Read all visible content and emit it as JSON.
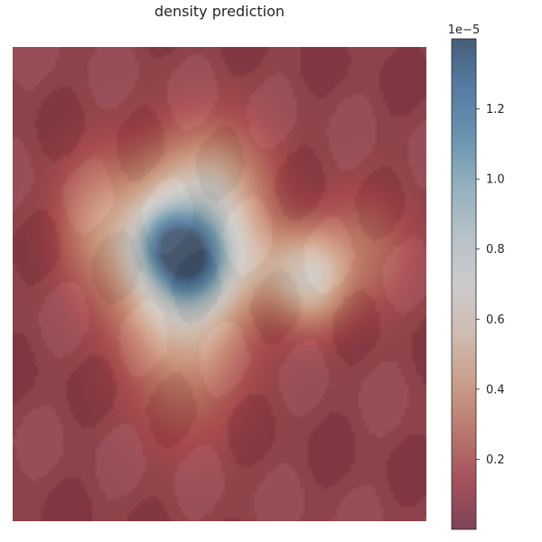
{
  "chart_data": {
    "type": "heatmap",
    "title": "density prediction",
    "xlabel": "",
    "ylabel": "",
    "axes_visible": false,
    "grid": false,
    "colormap": "RdBu",
    "overlay_opacity": 0.55,
    "background": "faint painting of a room with figures, visible through the heatmap",
    "colorbar": {
      "position": "right",
      "offset_text": "1e−5",
      "range": [
        0.0,
        1.4
      ],
      "ticks": [
        0.2,
        0.4,
        0.6,
        0.8,
        1.0,
        1.2
      ],
      "tick_labels": [
        "0.2",
        "0.4",
        "0.6",
        "0.8",
        "1.0",
        "1.2"
      ]
    },
    "field": {
      "note": "density in units of 1e-5; x and y are normalized image coordinates",
      "baseline": 0.06,
      "components": [
        {
          "x": 0.4,
          "y": 0.42,
          "sx": 0.11,
          "sy": 0.12,
          "amp": 0.62
        },
        {
          "x": 0.43,
          "y": 0.45,
          "sx": 0.06,
          "sy": 0.06,
          "amp": 0.45
        },
        {
          "x": 0.36,
          "y": 0.41,
          "sx": 0.05,
          "sy": 0.05,
          "amp": 0.3
        },
        {
          "x": 0.72,
          "y": 0.49,
          "sx": 0.06,
          "sy": 0.07,
          "amp": 0.5
        },
        {
          "x": 0.42,
          "y": 0.56,
          "sx": 0.1,
          "sy": 0.16,
          "amp": 0.35
        },
        {
          "x": 0.2,
          "y": 0.37,
          "sx": 0.07,
          "sy": 0.1,
          "amp": 0.22
        },
        {
          "x": 0.85,
          "y": 0.43,
          "sx": 0.08,
          "sy": 0.09,
          "amp": 0.2
        },
        {
          "x": 0.5,
          "y": 0.3,
          "sx": 0.09,
          "sy": 0.1,
          "amp": 0.28
        },
        {
          "x": 0.6,
          "y": 0.46,
          "sx": 0.08,
          "sy": 0.06,
          "amp": 0.2
        }
      ]
    }
  }
}
